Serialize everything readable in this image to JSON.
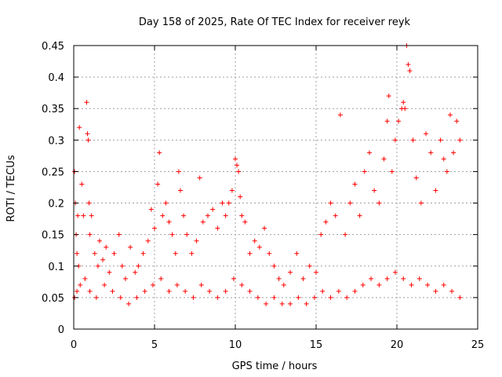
{
  "chart_data": {
    "type": "scatter",
    "title": "Day 158 of 2025, Rate Of TEC Index for receiver reyk",
    "xlabel": "GPS time / hours",
    "ylabel": "ROTI / TECUs",
    "xlim": [
      0,
      25
    ],
    "ylim": [
      0,
      0.45
    ],
    "xticks": [
      0,
      5,
      10,
      15,
      20,
      25
    ],
    "xtick_labels": [
      "0",
      "5",
      "10",
      "15",
      "20",
      "25"
    ],
    "yticks": [
      0,
      0.05,
      0.1,
      0.15,
      0.2,
      0.25,
      0.3,
      0.35,
      0.4,
      0.45
    ],
    "ytick_labels": [
      "0",
      "0.05",
      "0.1",
      "0.15",
      "0.2",
      "0.25",
      "0.3",
      "0.35",
      "0.4",
      "0.45"
    ],
    "grid": true,
    "marker": "+",
    "color": "#ff0000",
    "series": [
      {
        "name": "ROTI",
        "x": [
          0.05,
          0.1,
          0.15,
          0.2,
          0.25,
          0.3,
          0.35,
          0.5,
          0.6,
          0.8,
          0.85,
          0.9,
          0.95,
          1.0,
          1.1,
          1.3,
          1.5,
          1.6,
          1.8,
          2.0,
          2.2,
          2.5,
          2.8,
          3.0,
          3.2,
          3.5,
          3.8,
          4.0,
          4.3,
          4.6,
          4.8,
          5.0,
          5.2,
          5.3,
          5.5,
          5.7,
          5.9,
          6.1,
          6.3,
          6.5,
          6.6,
          6.8,
          7.0,
          7.3,
          7.6,
          7.8,
          8.0,
          8.3,
          8.6,
          8.9,
          9.2,
          9.4,
          9.6,
          9.8,
          10.0,
          10.1,
          10.2,
          10.3,
          10.4,
          10.6,
          10.9,
          11.2,
          11.5,
          11.8,
          12.1,
          12.4,
          12.7,
          13.0,
          13.4,
          13.8,
          14.2,
          14.6,
          15.0,
          15.3,
          15.6,
          15.9,
          16.2,
          16.5,
          16.8,
          17.1,
          17.4,
          17.7,
          18.0,
          18.3,
          18.6,
          18.9,
          19.2,
          19.4,
          19.5,
          19.7,
          19.9,
          20.1,
          20.3,
          20.4,
          20.5,
          20.6,
          20.7,
          20.8,
          21.0,
          21.2,
          21.5,
          21.8,
          22.1,
          22.4,
          22.7,
          22.9,
          23.1,
          23.3,
          23.5,
          23.7,
          23.9,
          0.05,
          0.2,
          0.4,
          0.7,
          1.0,
          1.4,
          1.9,
          2.4,
          2.9,
          3.4,
          3.9,
          4.4,
          4.9,
          5.4,
          5.9,
          6.4,
          6.9,
          7.4,
          7.9,
          8.4,
          8.9,
          9.4,
          9.9,
          10.4,
          10.9,
          11.4,
          11.9,
          12.4,
          12.9,
          13.4,
          13.9,
          14.4,
          14.9,
          15.4,
          15.9,
          16.4,
          16.9,
          17.4,
          17.9,
          18.4,
          18.9,
          19.4,
          19.9,
          20.4,
          20.9,
          21.4,
          21.9,
          22.4,
          22.9,
          23.4,
          23.9
        ],
        "y": [
          0.25,
          0.2,
          0.15,
          0.12,
          0.18,
          0.1,
          0.32,
          0.23,
          0.18,
          0.36,
          0.31,
          0.3,
          0.2,
          0.15,
          0.18,
          0.12,
          0.1,
          0.14,
          0.11,
          0.13,
          0.09,
          0.12,
          0.15,
          0.1,
          0.08,
          0.13,
          0.09,
          0.1,
          0.12,
          0.14,
          0.19,
          0.16,
          0.23,
          0.28,
          0.18,
          0.2,
          0.17,
          0.15,
          0.12,
          0.25,
          0.22,
          0.18,
          0.15,
          0.12,
          0.14,
          0.24,
          0.17,
          0.18,
          0.19,
          0.16,
          0.2,
          0.18,
          0.2,
          0.22,
          0.27,
          0.26,
          0.25,
          0.21,
          0.18,
          0.17,
          0.12,
          0.14,
          0.13,
          0.16,
          0.12,
          0.1,
          0.08,
          0.07,
          0.09,
          0.12,
          0.08,
          0.1,
          0.09,
          0.15,
          0.17,
          0.2,
          0.18,
          0.34,
          0.15,
          0.2,
          0.23,
          0.18,
          0.25,
          0.28,
          0.22,
          0.2,
          0.27,
          0.33,
          0.37,
          0.25,
          0.3,
          0.33,
          0.35,
          0.36,
          0.35,
          0.45,
          0.42,
          0.41,
          0.3,
          0.24,
          0.2,
          0.31,
          0.28,
          0.22,
          0.3,
          0.27,
          0.25,
          0.34,
          0.28,
          0.33,
          0.3,
          0.05,
          0.06,
          0.07,
          0.08,
          0.06,
          0.05,
          0.07,
          0.06,
          0.05,
          0.04,
          0.05,
          0.06,
          0.07,
          0.08,
          0.06,
          0.07,
          0.06,
          0.05,
          0.07,
          0.06,
          0.05,
          0.06,
          0.08,
          0.07,
          0.06,
          0.05,
          0.04,
          0.05,
          0.04,
          0.04,
          0.05,
          0.04,
          0.05,
          0.06,
          0.05,
          0.06,
          0.05,
          0.06,
          0.07,
          0.08,
          0.07,
          0.08,
          0.09,
          0.08,
          0.07,
          0.08,
          0.07,
          0.06,
          0.07,
          0.06,
          0.05
        ]
      }
    ]
  }
}
